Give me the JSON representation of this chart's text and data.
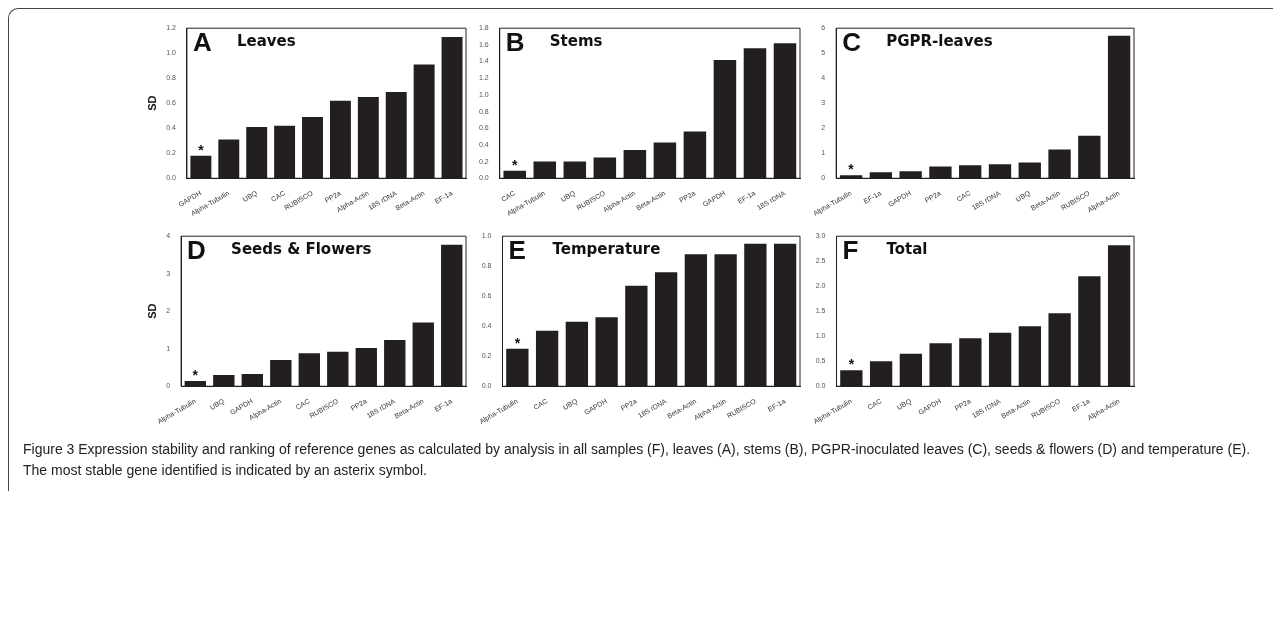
{
  "chart_data": [
    {
      "type": "bar",
      "title": "Leaves",
      "ylabel": "SD",
      "annotations": [
        "A",
        {
          "text": "*",
          "x": "GAPDH",
          "y": 0.18
        }
      ],
      "categories": [
        "GAPDH",
        "Alpha-Tubulin",
        "UBQ",
        "CAC",
        "RUBISCO",
        "PP2a",
        "Alpha-Actin",
        "18S rDNA",
        "Beta-Actin",
        "EF-1a"
      ],
      "values": [
        0.18,
        0.31,
        0.41,
        0.42,
        0.49,
        0.62,
        0.65,
        0.69,
        0.91,
        1.13
      ],
      "color": "#231f20",
      "ylim": [
        0,
        1.2
      ],
      "yticks": [
        {
          "value": 0,
          "label": "0.0"
        },
        0.2,
        0.4,
        0.6,
        0.8,
        {
          "value": 1,
          "label": "1.0"
        },
        1.2
      ],
      "grid": false,
      "legend": false
    },
    {
      "type": "bar",
      "title": "Stems",
      "annotations": [
        "B",
        {
          "text": "*",
          "x": "CAC",
          "y": 0.09
        }
      ],
      "categories": [
        "CAC",
        "Alpha-Tubulin",
        "UBQ",
        "RUBISCO",
        "Alpha-Actin",
        "Beta-Actin",
        "PP2a",
        "GAPDH",
        "EF-1a",
        "18S rDNA"
      ],
      "values": [
        0.09,
        0.2,
        0.2,
        0.25,
        0.34,
        0.43,
        0.56,
        1.42,
        1.56,
        1.62
      ],
      "color": "#231f20",
      "ylim": [
        0,
        1.8
      ],
      "yticks": [
        {
          "value": 0,
          "label": "0.0"
        },
        0.2,
        0.4,
        0.6,
        0.8,
        {
          "value": 1,
          "label": "1.0"
        },
        1.2,
        1.4,
        1.6,
        1.8
      ],
      "grid": false,
      "legend": false
    },
    {
      "type": "bar",
      "title": "PGPR-leaves",
      "annotations": [
        "C",
        {
          "text": "*",
          "x": "Alpha-Tubulin",
          "y": 0.12
        }
      ],
      "categories": [
        "Alpha-Tubulin",
        "EF-1a",
        "GAPDH",
        "PP2a",
        "CAC",
        "18S rDNA",
        "UBQ",
        "Beta-Actin",
        "RUBISCO",
        "Alpha-Actin"
      ],
      "values": [
        0.12,
        0.24,
        0.28,
        0.47,
        0.52,
        0.56,
        0.63,
        1.15,
        1.7,
        5.7
      ],
      "color": "#231f20",
      "ylim": [
        0,
        6
      ],
      "yticks": [
        0,
        1,
        2,
        3,
        4,
        5,
        6
      ],
      "grid": false,
      "legend": false
    },
    {
      "type": "bar",
      "title": "Seeds & Flowers",
      "ylabel": "SD",
      "annotations": [
        "D",
        {
          "text": "*",
          "x": "Alpha-Tubulin",
          "y": 0.14
        }
      ],
      "categories": [
        "Alpha-Tubulin",
        "UBQ",
        "GAPDH",
        "Alpha-Actin",
        "CAC",
        "RUBISCO",
        "PP2a",
        "18S rDNA",
        "Beta-Actin",
        "EF-1a"
      ],
      "values": [
        0.14,
        0.3,
        0.33,
        0.7,
        0.88,
        0.92,
        1.02,
        1.23,
        1.7,
        3.77
      ],
      "color": "#231f20",
      "ylim": [
        0,
        4
      ],
      "yticks": [
        0,
        1,
        2,
        3,
        4
      ],
      "grid": false,
      "legend": false
    },
    {
      "type": "bar",
      "title": "Temperature",
      "annotations": [
        "E",
        {
          "text": "*",
          "x": "Alpha-Tubulin",
          "y": 0.25
        }
      ],
      "categories": [
        "Alpha-Tubulin",
        "CAC",
        "UBQ",
        "GAPDH",
        "PP2a",
        "18S rDNA",
        "Beta-Actin",
        "Alpha-Actin",
        "RUBISCO",
        "EF-1a"
      ],
      "values": [
        0.25,
        0.37,
        0.43,
        0.46,
        0.67,
        0.76,
        0.88,
        0.88,
        0.95,
        0.95
      ],
      "color": "#231f20",
      "ylim": [
        0,
        1
      ],
      "yticks": [
        {
          "value": 0,
          "label": "0.0"
        },
        0.2,
        0.4,
        0.6,
        0.8,
        {
          "value": 1,
          "label": "1.0"
        }
      ],
      "grid": false,
      "legend": false
    },
    {
      "type": "bar",
      "title": "Total",
      "annotations": [
        "F",
        {
          "text": "*",
          "x": "Alpha-Tubulin",
          "y": 0.32
        }
      ],
      "categories": [
        "Alpha-Tubulin",
        "CAC",
        "UBQ",
        "GAPDH",
        "PP2a",
        "18S rDNA",
        "Beta-Actin",
        "RUBISCO",
        "EF-1a",
        "Alpha-Actin"
      ],
      "values": [
        0.32,
        0.5,
        0.65,
        0.86,
        0.96,
        1.07,
        1.2,
        1.46,
        2.2,
        2.82
      ],
      "color": "#231f20",
      "ylim": [
        0,
        3
      ],
      "yticks": [
        {
          "value": 0,
          "label": "0.0"
        },
        0.5,
        {
          "value": 1,
          "label": "1.0"
        },
        1.5,
        {
          "value": 2,
          "label": "2.0"
        },
        2.5,
        {
          "value": 3,
          "label": "3.0"
        }
      ],
      "grid": false,
      "legend": false
    },
    {
      "type": "other",
      "annotations": [
        "Figure 3 Expression stability and ranking of reference genes as calculated by analysis in all samples (F), leaves (A), stems (B), PGPR-inoculated leaves (C), seeds & flowers (D) and temperature (E). The most stable gene identified is indicated by an asterix symbol."
      ]
    }
  ]
}
